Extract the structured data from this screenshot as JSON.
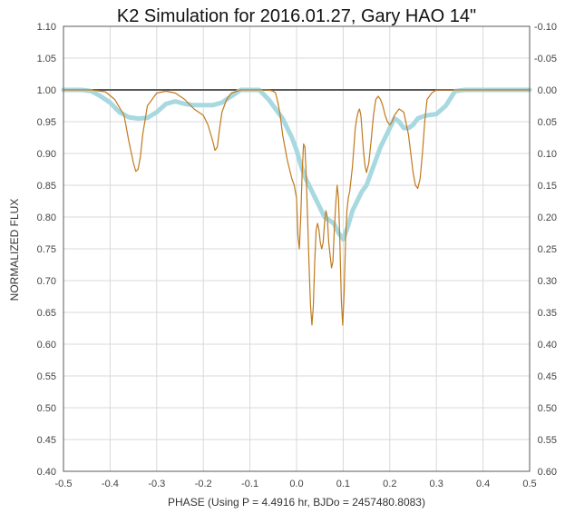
{
  "chart_data": {
    "type": "line",
    "title": "K2 Simulation for 2016.01.27, Gary HAO 14\"",
    "xlabel": "PHASE (Using P = 4.4916 hr, BJDo = 2457480.8083)",
    "ylabel": "NORMALIZED FLUX",
    "xlim": [
      -0.5,
      0.5
    ],
    "ylim": [
      0.4,
      1.1
    ],
    "y2lim": [
      0.6,
      -0.1
    ],
    "grid": true,
    "legend": "none",
    "x_ticks": [
      "-0.5",
      "-0.4",
      "-0.3",
      "-0.2",
      "-0.1",
      "0.0",
      "0.1",
      "0.2",
      "0.3",
      "0.4",
      "0.5"
    ],
    "y_ticks": [
      "0.40",
      "0.45",
      "0.50",
      "0.55",
      "0.60",
      "0.65",
      "0.70",
      "0.75",
      "0.80",
      "0.85",
      "0.90",
      "0.95",
      "1.00",
      "1.05",
      "1.10"
    ],
    "y2_ticks": [
      "0.60",
      "0.55",
      "0.50",
      "0.45",
      "0.40",
      "0.35",
      "0.30",
      "0.25",
      "0.20",
      "0.15",
      "0.10",
      "0.05",
      "0.00",
      "-0.05",
      "-0.10"
    ],
    "colors": {
      "model": "#C07A1E",
      "simulation": "#A8D8E0",
      "baseline": "#595959",
      "grid": "#D9D9D9"
    },
    "series": [
      {
        "x": [
          -0.5,
          0.5
        ],
        "y": [
          1.0,
          1.0
        ]
      },
      {
        "x": [
          -0.5,
          -0.44,
          -0.41,
          -0.39,
          -0.37,
          -0.36,
          -0.35,
          -0.345,
          -0.34,
          -0.335,
          -0.33,
          -0.32,
          -0.3,
          -0.28,
          -0.26,
          -0.24,
          -0.22,
          -0.2,
          -0.19,
          -0.18,
          -0.175,
          -0.17,
          -0.165,
          -0.16,
          -0.15,
          -0.14,
          -0.12,
          -0.1,
          -0.08,
          -0.06,
          -0.05,
          -0.045,
          -0.04,
          -0.035,
          -0.03,
          -0.02,
          -0.01,
          -0.005,
          0.0,
          0.003,
          0.006,
          0.009,
          0.012,
          0.015,
          0.018,
          0.021,
          0.024,
          0.027,
          0.03,
          0.033,
          0.036,
          0.039,
          0.042,
          0.045,
          0.048,
          0.051,
          0.054,
          0.057,
          0.06,
          0.063,
          0.066,
          0.069,
          0.072,
          0.075,
          0.078,
          0.081,
          0.084,
          0.087,
          0.09,
          0.093,
          0.096,
          0.099,
          0.102,
          0.105,
          0.108,
          0.111,
          0.114,
          0.117,
          0.12,
          0.123,
          0.126,
          0.129,
          0.132,
          0.135,
          0.138,
          0.141,
          0.144,
          0.147,
          0.15,
          0.155,
          0.16,
          0.165,
          0.17,
          0.175,
          0.18,
          0.185,
          0.19,
          0.195,
          0.2,
          0.205,
          0.21,
          0.22,
          0.23,
          0.24,
          0.245,
          0.25,
          0.255,
          0.26,
          0.265,
          0.27,
          0.275,
          0.28,
          0.29,
          0.3,
          0.31,
          0.32,
          0.34,
          0.5
        ],
        "y": [
          1.0,
          1.0,
          0.997,
          0.985,
          0.96,
          0.92,
          0.885,
          0.872,
          0.875,
          0.895,
          0.93,
          0.975,
          0.995,
          0.998,
          0.995,
          0.985,
          0.97,
          0.96,
          0.945,
          0.92,
          0.905,
          0.91,
          0.94,
          0.965,
          0.985,
          0.995,
          1.0,
          1.0,
          1.0,
          1.0,
          0.998,
          0.995,
          0.98,
          0.96,
          0.93,
          0.89,
          0.86,
          0.85,
          0.83,
          0.77,
          0.75,
          0.8,
          0.87,
          0.915,
          0.91,
          0.86,
          0.79,
          0.72,
          0.66,
          0.63,
          0.66,
          0.73,
          0.78,
          0.79,
          0.78,
          0.76,
          0.75,
          0.76,
          0.79,
          0.81,
          0.8,
          0.76,
          0.74,
          0.72,
          0.73,
          0.78,
          0.82,
          0.85,
          0.83,
          0.76,
          0.67,
          0.63,
          0.68,
          0.76,
          0.81,
          0.83,
          0.84,
          0.86,
          0.88,
          0.91,
          0.94,
          0.955,
          0.965,
          0.97,
          0.96,
          0.93,
          0.9,
          0.88,
          0.87,
          0.885,
          0.92,
          0.96,
          0.985,
          0.99,
          0.985,
          0.975,
          0.96,
          0.95,
          0.945,
          0.95,
          0.96,
          0.97,
          0.965,
          0.93,
          0.9,
          0.87,
          0.85,
          0.845,
          0.86,
          0.9,
          0.95,
          0.985,
          0.995,
          1.0,
          1.0,
          1.0,
          1.0,
          1.0
        ]
      },
      {
        "x": [
          -0.5,
          -0.46,
          -0.44,
          -0.42,
          -0.4,
          -0.38,
          -0.36,
          -0.34,
          -0.32,
          -0.3,
          -0.28,
          -0.26,
          -0.24,
          -0.22,
          -0.2,
          -0.18,
          -0.16,
          -0.14,
          -0.12,
          -0.1,
          -0.08,
          -0.06,
          -0.05,
          -0.04,
          -0.03,
          -0.02,
          -0.01,
          0.0,
          0.01,
          0.02,
          0.03,
          0.04,
          0.05,
          0.06,
          0.07,
          0.08,
          0.09,
          0.1,
          0.11,
          0.12,
          0.13,
          0.14,
          0.15,
          0.16,
          0.17,
          0.18,
          0.19,
          0.2,
          0.21,
          0.22,
          0.23,
          0.24,
          0.25,
          0.26,
          0.27,
          0.28,
          0.3,
          0.32,
          0.34,
          0.36,
          0.4,
          0.5
        ],
        "y": [
          1.0,
          1.0,
          0.998,
          0.99,
          0.98,
          0.965,
          0.957,
          0.955,
          0.956,
          0.965,
          0.978,
          0.982,
          0.978,
          0.976,
          0.976,
          0.976,
          0.98,
          0.99,
          1.0,
          1.0,
          1.0,
          0.985,
          0.975,
          0.965,
          0.955,
          0.94,
          0.925,
          0.905,
          0.88,
          0.86,
          0.845,
          0.83,
          0.815,
          0.8,
          0.795,
          0.79,
          0.775,
          0.765,
          0.785,
          0.81,
          0.825,
          0.84,
          0.85,
          0.87,
          0.89,
          0.91,
          0.925,
          0.94,
          0.955,
          0.95,
          0.94,
          0.94,
          0.945,
          0.955,
          0.958,
          0.96,
          0.962,
          0.975,
          0.998,
          1.0,
          1.0,
          1.0
        ]
      }
    ]
  }
}
